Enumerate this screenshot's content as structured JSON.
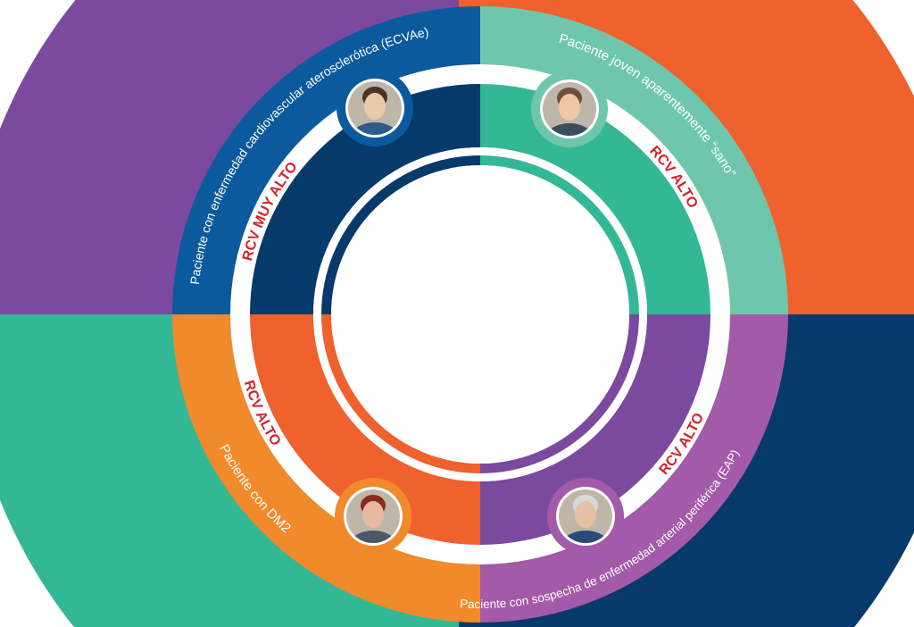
{
  "colors": {
    "bg_tl": "#7b4a9e",
    "bg_tr": "#ef612d",
    "bg_bl": "#33b896",
    "bg_br": "#063a6b",
    "mid_tl": "#0c5a9e",
    "mid_tr": "#6ec7ad",
    "mid_bl": "#f08a2a",
    "mid_br": "#a35aa8",
    "in_tl": "#063a6b",
    "in_tr": "#33b896",
    "in_bl": "#ef612d",
    "in_br": "#7b4a9e",
    "risk_text": "#d2232a"
  },
  "segments": [
    {
      "id": "tl",
      "label": "Paciente con enfermedad cardiovascular aterosclerótica (ECVAe)",
      "risk": "RCV MUY ALTO",
      "avatar_icon": "patient-photo-man"
    },
    {
      "id": "tr",
      "label": "Paciente joven aparentemente “sano”",
      "risk": "RCV ALTO",
      "avatar_icon": "patient-photo-bearded-man"
    },
    {
      "id": "bl",
      "label": "Paciente con DM2",
      "risk": "RCV ALTO",
      "avatar_icon": "patient-photo-woman"
    },
    {
      "id": "br",
      "label": "Paciente con sospecha de enfermedad arterial periférica (EAP)",
      "risk": "RCV ALTO",
      "avatar_icon": "patient-photo-older-man"
    }
  ]
}
